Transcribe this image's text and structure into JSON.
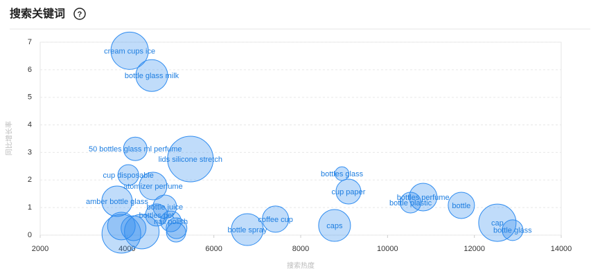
{
  "title": "搜索关键词",
  "help": "?",
  "chart_data": {
    "type": "scatter",
    "xlabel": "搜索热度",
    "ylabel": "同比增长率",
    "color": "#2f8cf0",
    "grid": true,
    "labels": [
      "cream cups ice",
      "bottle glass milk",
      "50 bottles glass ml perfume",
      "lids silicone stretch",
      "cup disposable",
      "atomizer perfume",
      "amber bottle glass",
      "bottle juice",
      "bottles pet",
      "nail polish",
      null,
      null,
      null,
      null,
      null,
      null,
      "bottle spray",
      "coffee cup",
      "caps",
      "bottles glass",
      "cup paper",
      "bottles perfume",
      "bottle plastic",
      "bottle",
      "cap",
      "bottle glass"
    ],
    "x": [
      4060,
      4570,
      4190,
      5460,
      4030,
      4600,
      3770,
      4870,
      4680,
      5010,
      3870,
      3870,
      4340,
      4150,
      5140,
      5130,
      6770,
      7420,
      8780,
      8950,
      9100,
      10820,
      10530,
      11700,
      12530,
      12880
    ],
    "values": [
      6.69,
      5.79,
      3.13,
      2.76,
      2.18,
      1.78,
      1.23,
      1.03,
      0.73,
      0.5,
      0.33,
      0.05,
      0.13,
      0.25,
      0.25,
      0.1,
      0.2,
      0.58,
      0.35,
      2.23,
      1.58,
      1.38,
      1.18,
      1.08,
      0.45,
      0.18
    ],
    "sizes": [
      27,
      23,
      17,
      33,
      15,
      20,
      22,
      17,
      16,
      15,
      20,
      28,
      25,
      18,
      15,
      14,
      23,
      19,
      23,
      10,
      18,
      20,
      15,
      19,
      27,
      15
    ],
    "xlim": [
      2000,
      14000
    ],
    "xticks": [
      2000,
      4000,
      6000,
      8000,
      10000,
      12000,
      14000
    ],
    "ylim": [
      0,
      7
    ],
    "yticks": [
      0,
      1,
      2,
      3,
      4,
      5,
      6,
      7
    ]
  }
}
